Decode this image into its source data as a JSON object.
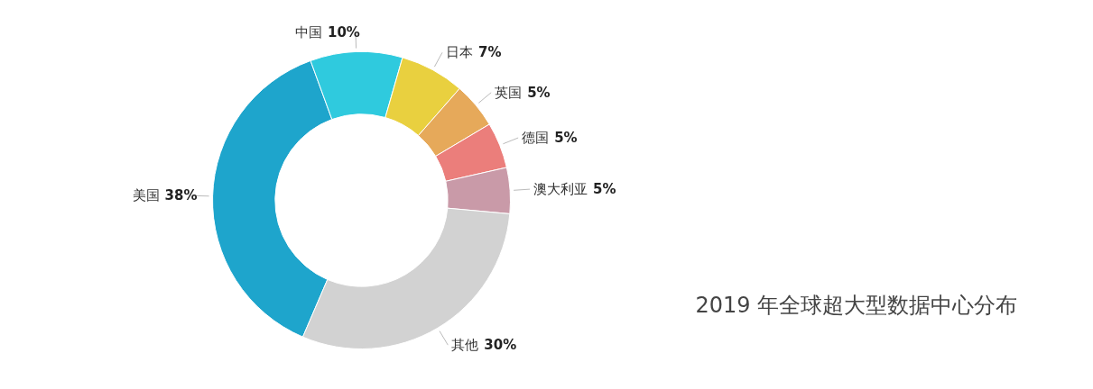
{
  "chart_data": {
    "type": "donut",
    "title": "2019 年全球超大型数据中心分布",
    "categories": [
      "美国",
      "中国",
      "日本",
      "英国",
      "德国",
      "澳大利亚",
      "其他"
    ],
    "values": [
      38,
      10,
      7,
      5,
      5,
      5,
      30
    ],
    "colors": [
      "#1ea5cc",
      "#2fcade",
      "#e9d03f",
      "#e6a95a",
      "#eb7e7b",
      "#c99aa8",
      "#d2d2d2"
    ],
    "value_labels": [
      "38%",
      "10%",
      "7%",
      "5%",
      "5%",
      "5%",
      "30%"
    ]
  }
}
